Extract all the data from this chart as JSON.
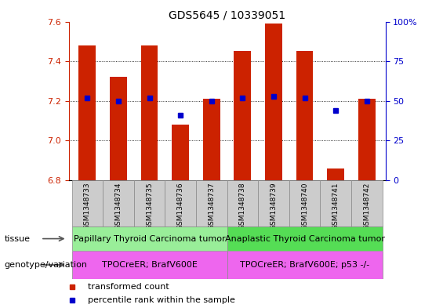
{
  "title": "GDS5645 / 10339051",
  "samples": [
    "GSM1348733",
    "GSM1348734",
    "GSM1348735",
    "GSM1348736",
    "GSM1348737",
    "GSM1348738",
    "GSM1348739",
    "GSM1348740",
    "GSM1348741",
    "GSM1348742"
  ],
  "transformed_count": [
    7.48,
    7.32,
    7.48,
    7.08,
    7.21,
    7.45,
    7.59,
    7.45,
    6.86,
    7.21
  ],
  "percentile_rank": [
    52,
    50,
    52,
    41,
    50,
    52,
    53,
    52,
    44,
    50
  ],
  "ylim": [
    6.8,
    7.6
  ],
  "yticks": [
    6.8,
    7.0,
    7.2,
    7.4,
    7.6
  ],
  "right_yticks": [
    0,
    25,
    50,
    75,
    100
  ],
  "bar_color": "#cc2200",
  "dot_color": "#0000cc",
  "tissue_groups": [
    {
      "label": "Papillary Thyroid Carcinoma tumor",
      "start": 0,
      "end": 4,
      "color": "#99ee99"
    },
    {
      "label": "Anaplastic Thyroid Carcinoma tumor",
      "start": 5,
      "end": 9,
      "color": "#55dd55"
    }
  ],
  "genotype_groups": [
    {
      "label": "TPOCreER; BrafV600E",
      "start": 0,
      "end": 4,
      "color": "#ee66ee"
    },
    {
      "label": "TPOCreER; BrafV600E; p53 -/-",
      "start": 5,
      "end": 9,
      "color": "#ee66ee"
    }
  ],
  "legend_items": [
    {
      "label": "transformed count",
      "color": "#cc2200"
    },
    {
      "label": "percentile rank within the sample",
      "color": "#0000cc"
    }
  ],
  "bar_width": 0.55,
  "background_color": "#ffffff",
  "title_fontsize": 10,
  "tick_fontsize": 8,
  "sample_fontsize": 6.5,
  "annot_fontsize": 8,
  "group_fontsize": 8
}
